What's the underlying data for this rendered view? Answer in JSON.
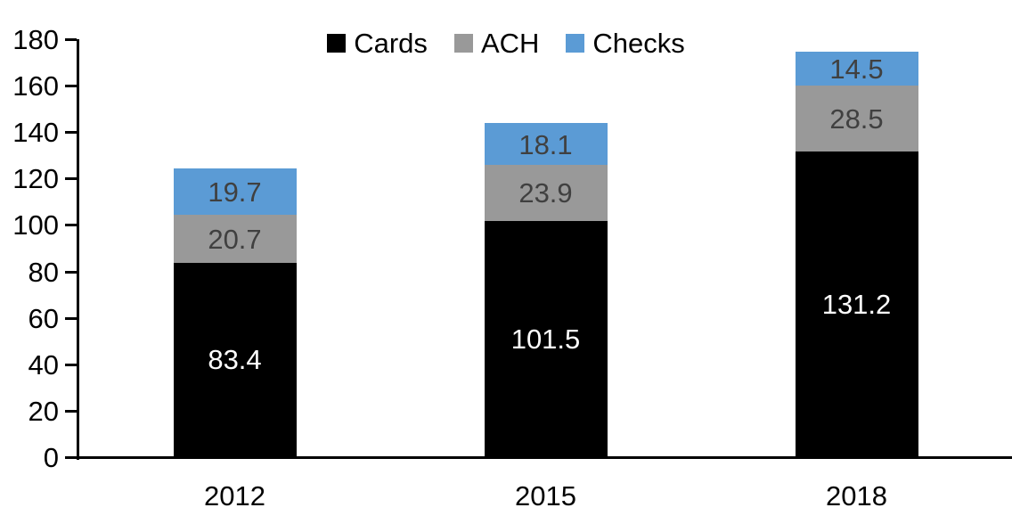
{
  "chart_data": {
    "type": "bar",
    "stacked": true,
    "title": "",
    "xlabel": "",
    "ylabel": "",
    "categories": [
      "2012",
      "2015",
      "2018"
    ],
    "series": [
      {
        "name": "Cards",
        "color": "#000000",
        "label_color": "#FFFFFF",
        "values": [
          83.4,
          101.5,
          131.2
        ]
      },
      {
        "name": "ACH",
        "color": "#999999",
        "label_color": "#404040",
        "values": [
          20.7,
          23.9,
          28.5
        ]
      },
      {
        "name": "Checks",
        "color": "#5B9BD5",
        "label_color": "#404040",
        "values": [
          19.7,
          18.1,
          14.5
        ]
      }
    ],
    "ylim": [
      0,
      180
    ],
    "yticks": [
      0,
      20,
      40,
      60,
      80,
      100,
      120,
      140,
      160,
      180
    ],
    "grid": false,
    "legend_position": "top-center",
    "data_labels": true,
    "data_label_decimals": 1
  }
}
